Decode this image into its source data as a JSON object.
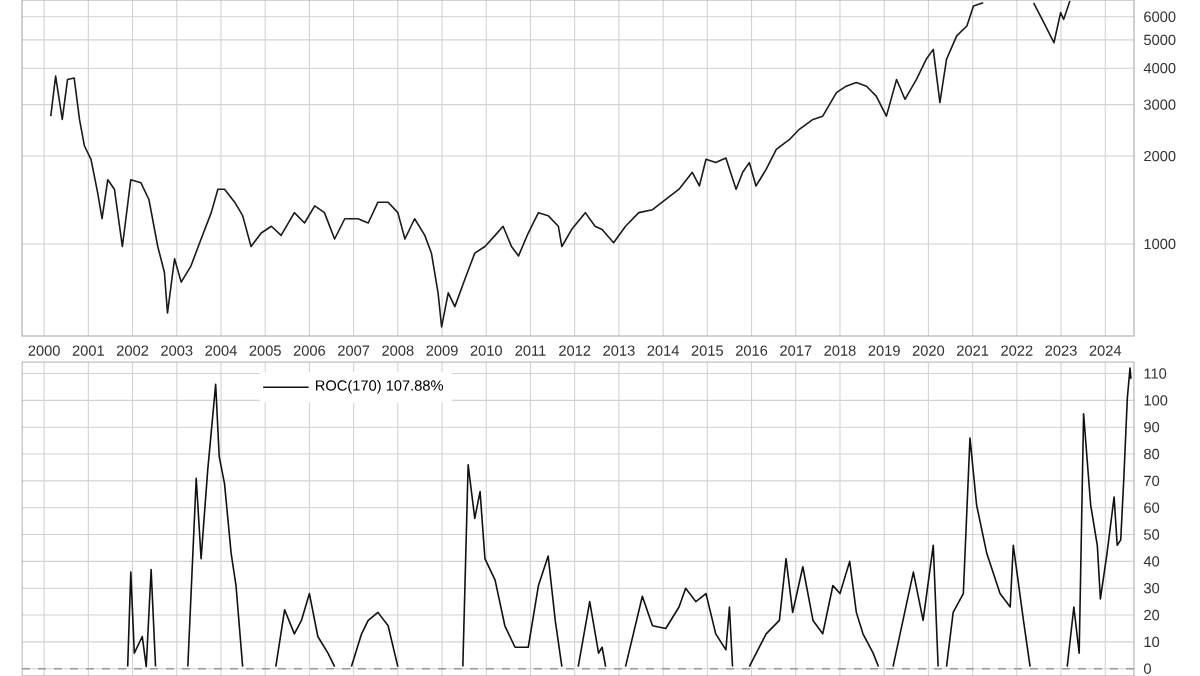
{
  "chart_data": [
    {
      "type": "line",
      "log": true,
      "grid": true,
      "color": "#1a1a1a",
      "xlim": [
        1999.5,
        2024.65
      ],
      "ylim": [
        484,
        6850
      ],
      "xticks": [
        2000,
        2001,
        2002,
        2003,
        2004,
        2005,
        2006,
        2007,
        2008,
        2009,
        2010,
        2011,
        2012,
        2013,
        2014,
        2015,
        2016,
        2017,
        2018,
        2019,
        2020,
        2021,
        2022,
        2023,
        2024
      ],
      "yticks": [
        1000,
        2000,
        3000,
        4000,
        5000,
        6000
      ],
      "x": [
        2000.15,
        2000.26,
        2000.41,
        2000.53,
        2000.68,
        2000.8,
        2000.91,
        2001.06,
        2001.21,
        2001.31,
        2001.44,
        2001.59,
        2001.77,
        2001.96,
        2002.19,
        2002.37,
        2002.57,
        2002.72,
        2002.79,
        2002.95,
        2003.1,
        2003.32,
        2003.55,
        2003.78,
        2003.93,
        2004.08,
        2004.31,
        2004.49,
        2004.68,
        2004.91,
        2005.14,
        2005.36,
        2005.66,
        2005.89,
        2006.12,
        2006.34,
        2006.57,
        2006.8,
        2007.1,
        2007.33,
        2007.55,
        2007.78,
        2008.0,
        2008.16,
        2008.38,
        2008.61,
        2008.76,
        2008.91,
        2008.99,
        2009.14,
        2009.29,
        2009.52,
        2009.74,
        2009.97,
        2010.2,
        2010.38,
        2010.57,
        2010.73,
        2010.95,
        2011.18,
        2011.4,
        2011.63,
        2011.71,
        2011.93,
        2012.24,
        2012.46,
        2012.62,
        2012.88,
        2013.15,
        2013.45,
        2013.76,
        2014.06,
        2014.36,
        2014.66,
        2014.82,
        2014.97,
        2015.19,
        2015.42,
        2015.65,
        2015.8,
        2015.95,
        2016.1,
        2016.33,
        2016.56,
        2016.86,
        2017.08,
        2017.39,
        2017.61,
        2017.92,
        2018.14,
        2018.37,
        2018.6,
        2018.82,
        2019.05,
        2019.28,
        2019.47,
        2019.73,
        2019.95,
        2020.11,
        2020.26,
        2020.41,
        2020.64,
        2020.87,
        2021.02,
        2021.24,
        2021.7,
        2022.38,
        2022.61,
        2022.84,
        2022.99,
        2023.06,
        2023.2
      ],
      "values": [
        2740,
        3760,
        2670,
        3660,
        3700,
        2670,
        2170,
        1950,
        1500,
        1220,
        1660,
        1540,
        980,
        1660,
        1620,
        1420,
        980,
        800,
        580,
        890,
        740,
        840,
        1040,
        1280,
        1540,
        1540,
        1390,
        1250,
        980,
        1090,
        1150,
        1070,
        1280,
        1180,
        1350,
        1280,
        1040,
        1220,
        1220,
        1180,
        1390,
        1390,
        1280,
        1040,
        1220,
        1070,
        930,
        680,
        520,
        680,
        610,
        760,
        930,
        980,
        1070,
        1150,
        980,
        910,
        1090,
        1280,
        1250,
        1150,
        980,
        1120,
        1280,
        1150,
        1120,
        1010,
        1150,
        1280,
        1310,
        1420,
        1540,
        1760,
        1580,
        1950,
        1900,
        1970,
        1540,
        1760,
        1900,
        1580,
        1800,
        2110,
        2280,
        2470,
        2670,
        2740,
        3300,
        3470,
        3570,
        3470,
        3210,
        2740,
        3660,
        3130,
        3660,
        4290,
        4640,
        3050,
        4290,
        5160,
        5580,
        6530,
        6700,
        null,
        6700,
        5730,
        4890,
        6200,
        5880,
        6800
      ]
    },
    {
      "type": "line",
      "grid": true,
      "tick_labels": "y",
      "legend": "top",
      "xlim": [
        1999.5,
        2024.65
      ],
      "ylim": [
        -2.7,
        114.3
      ],
      "xticks": [
        2000,
        2001,
        2002,
        2003,
        2004,
        2005,
        2006,
        2007,
        2008,
        2009,
        2010,
        2011,
        2012,
        2013,
        2014,
        2015,
        2016,
        2017,
        2018,
        2019,
        2020,
        2021,
        2022,
        2023,
        2024
      ],
      "yticks": [
        0,
        10,
        20,
        30,
        40,
        50,
        60,
        70,
        80,
        90,
        100,
        110
      ],
      "ref_lines": [
        {
          "axis": "y",
          "value": 0,
          "color": "#999999",
          "line_style": "dashed"
        }
      ],
      "x": [
        2001.89,
        2001.96,
        2002.04,
        2002.22,
        2002.31,
        2002.42,
        2002.52,
        2002.9,
        2003.25,
        2003.44,
        2003.55,
        2003.7,
        2003.88,
        2003.96,
        2004.08,
        2004.23,
        2004.34,
        2004.49,
        2004.9,
        2005.24,
        2005.44,
        2005.66,
        2005.82,
        2006.0,
        2006.19,
        2006.42,
        2006.57,
        2006.75,
        2006.95,
        2007.18,
        2007.33,
        2007.55,
        2007.78,
        2008.0,
        2008.7,
        2009.47,
        2009.59,
        2009.74,
        2009.86,
        2009.97,
        2010.2,
        2010.42,
        2010.65,
        2010.95,
        2011.18,
        2011.4,
        2011.56,
        2011.71,
        2011.9,
        2012.08,
        2012.34,
        2012.54,
        2012.62,
        2012.7,
        2012.9,
        2013.15,
        2013.53,
        2013.76,
        2014.06,
        2014.36,
        2014.51,
        2014.74,
        2014.97,
        2015.19,
        2015.42,
        2015.5,
        2015.57,
        2015.75,
        2015.95,
        2016.33,
        2016.63,
        2016.78,
        2016.93,
        2017.16,
        2017.39,
        2017.61,
        2017.84,
        2018.0,
        2018.22,
        2018.37,
        2018.52,
        2018.75,
        2018.87,
        2019.05,
        2019.2,
        2019.66,
        2019.88,
        2020.11,
        2020.22,
        2020.3,
        2020.41,
        2020.56,
        2020.79,
        2020.94,
        2021.09,
        2021.32,
        2021.62,
        2021.85,
        2021.92,
        2022.15,
        2022.3,
        2022.7,
        2023.14,
        2023.29,
        2023.41,
        2023.51,
        2023.67,
        2023.82,
        2023.89,
        2024.04,
        2024.2,
        2024.27,
        2024.35,
        2024.42,
        2024.5,
        2024.56,
        2024.58
      ],
      "series": [
        {
          "name": "ROC(170) 107.88%",
          "color": "#111111",
          "values": [
            0.8,
            36,
            5.8,
            12,
            0.8,
            37,
            0.8,
            null,
            0.8,
            71,
            41,
            74,
            106,
            79,
            69,
            43,
            31,
            0.8,
            null,
            0.8,
            22,
            13,
            18,
            28,
            12,
            5.8,
            0.8,
            null,
            0.8,
            13,
            18,
            21,
            16,
            0.8,
            null,
            0.8,
            76,
            56,
            66,
            41,
            33,
            16,
            8,
            8,
            31,
            42,
            18,
            0.8,
            null,
            0.8,
            25,
            5.8,
            8,
            0.8,
            null,
            0.8,
            27,
            16,
            15,
            23,
            30,
            25,
            28,
            13,
            7,
            23,
            0.8,
            null,
            0.8,
            13,
            18,
            41,
            21,
            38,
            18,
            13,
            31,
            28,
            40,
            21,
            13,
            5.8,
            0.8,
            null,
            0.8,
            36,
            18,
            46,
            0.8,
            null,
            0.8,
            21,
            28,
            86,
            61,
            43,
            28,
            23,
            46,
            18,
            0.8,
            null,
            0.8,
            23,
            5.8,
            95,
            61,
            46,
            26,
            43,
            64,
            46,
            48,
            71,
            101,
            112,
            108
          ]
        }
      ]
    }
  ]
}
